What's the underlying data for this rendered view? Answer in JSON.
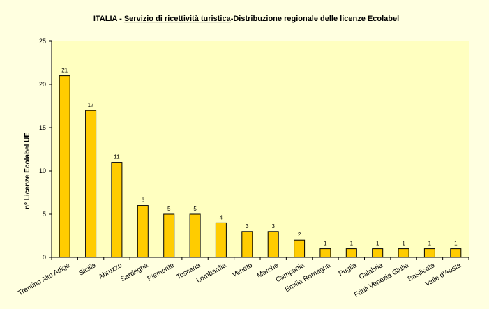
{
  "chart_data": {
    "type": "bar",
    "title_parts": {
      "prefix": "ITALIA - ",
      "underlined": "Servizio di ricettività turistica",
      "suffix": "-Distribuzione regionale delle licenze Ecolabel"
    },
    "xlabel": "",
    "ylabel": "n° Licenze Ecolabel UE",
    "ylim": [
      0,
      25
    ],
    "yticks": [
      0,
      5,
      10,
      15,
      20,
      25
    ],
    "grid": false,
    "legend": "none",
    "categories": [
      "Trentino Alto Adige",
      "Sicilia",
      "Abruzzo",
      "Sardegna",
      "Piemonte",
      "Toscana",
      "Lombardia",
      "Veneto",
      "Marche",
      "Campania",
      "Emilia Romagna",
      "Puglia",
      "Calabria",
      "Friuli Venezia Giulia",
      "Basilicata",
      "Valle d'Aosta"
    ],
    "values": [
      21,
      17,
      11,
      6,
      5,
      5,
      4,
      3,
      3,
      2,
      1,
      1,
      1,
      1,
      1,
      1
    ],
    "colors": {
      "bar_fill": "#ffcc00",
      "bar_stroke": "#000000",
      "plot_background": "#ffffc0",
      "frame_background": "#ffffe0"
    }
  }
}
